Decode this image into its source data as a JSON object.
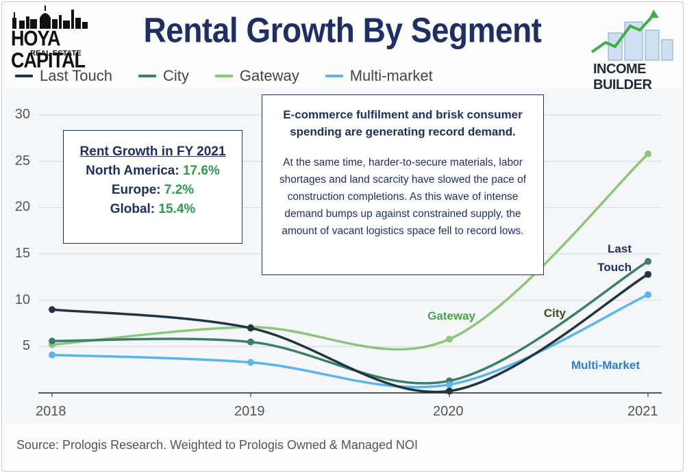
{
  "header": {
    "title": "Rental Growth By Segment",
    "logo_left_line1": "HOYA CAPITAL",
    "logo_left_line2": "REAL ESTATE",
    "logo_right_text": "INCOME BUILDER"
  },
  "info_box": {
    "title": "Rent Growth in FY 2021",
    "rows": [
      {
        "label": "North America:",
        "value": "17.6%"
      },
      {
        "label": "Europe:",
        "value": "7.2%"
      },
      {
        "label": "Global:",
        "value": "15.4%"
      }
    ]
  },
  "quote_box": {
    "headline": "E-commerce fulfilment and brisk consumer spending are generating record demand.",
    "body": "At the same time, harder-to-secure materials, labor shortages and land scarcity have slowed the pace of construction completions. As this wave of intense demand bumps up against constrained supply, the amount of vacant logistics space fell to record lows."
  },
  "source": "Source: Prologis Research. Weighted to Prologis Owned & Managed NOI",
  "chart_data": {
    "type": "line",
    "title": "Rental Growth By Segment",
    "x": [
      "2018",
      "2019",
      "2020",
      "2021"
    ],
    "ylim": [
      0,
      30
    ],
    "yticks": [
      5,
      10,
      15,
      20,
      25,
      30
    ],
    "legend_position": "top-left",
    "grid": true,
    "series": [
      {
        "name": "Last Touch",
        "color": "#1f3545",
        "values": [
          9.0,
          7.0,
          0.2,
          12.8
        ]
      },
      {
        "name": "City",
        "color": "#3b7f68",
        "values": [
          5.6,
          5.5,
          1.3,
          14.2
        ]
      },
      {
        "name": "Gateway",
        "color": "#8cc779",
        "values": [
          5.2,
          7.1,
          5.8,
          25.8
        ]
      },
      {
        "name": "Multi-market",
        "color": "#5ab4ee",
        "values": [
          4.1,
          3.3,
          0.9,
          10.6
        ]
      }
    ],
    "annotations": [
      {
        "text": "Gateway",
        "color": "#4aa34f"
      },
      {
        "text": "City",
        "color": "#3a4a1c"
      },
      {
        "text": "Last Touch",
        "color": "#1e2f66"
      },
      {
        "text": "Multi-Market",
        "color": "#2f7fd0"
      }
    ]
  }
}
